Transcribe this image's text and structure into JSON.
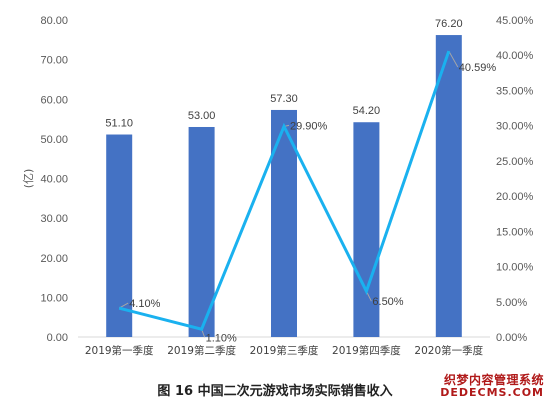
{
  "chart_data": {
    "type": "bar",
    "categories": [
      "2019第一季度",
      "2019第二季度",
      "2019第三季度",
      "2019第四季度",
      "2020第一季度"
    ],
    "series": [
      {
        "type": "bar",
        "axis": "left",
        "values": [
          51.1,
          53.0,
          57.3,
          54.2,
          76.2
        ],
        "labels": [
          "51.10",
          "53.00",
          "57.30",
          "54.20",
          "76.20"
        ],
        "color": "#4472c4"
      },
      {
        "type": "line",
        "axis": "right",
        "values": [
          4.1,
          1.1,
          29.9,
          6.5,
          40.59
        ],
        "labels": [
          "4.10%",
          "1.10%",
          "29.90%",
          "6.50%",
          "40.59%"
        ],
        "color": "#1ab1ef"
      }
    ],
    "ylabel": "(亿)",
    "ylim": [
      0,
      80
    ],
    "y_ticks": [
      "0.00",
      "10.00",
      "20.00",
      "30.00",
      "40.00",
      "50.00",
      "60.00",
      "70.00",
      "80.00"
    ],
    "y2lim": [
      0,
      45
    ],
    "y2_ticks": [
      "0.00%",
      "5.00%",
      "10.00%",
      "15.00%",
      "20.00%",
      "25.00%",
      "30.00%",
      "35.00%",
      "40.00%",
      "45.00%"
    ],
    "grid": false,
    "legend": "none"
  },
  "caption": "图 16  中国二次元游戏市场实际销售收入",
  "watermark": {
    "line1": "织梦内容管理系统",
    "line2": "DEDECMS.COM"
  }
}
